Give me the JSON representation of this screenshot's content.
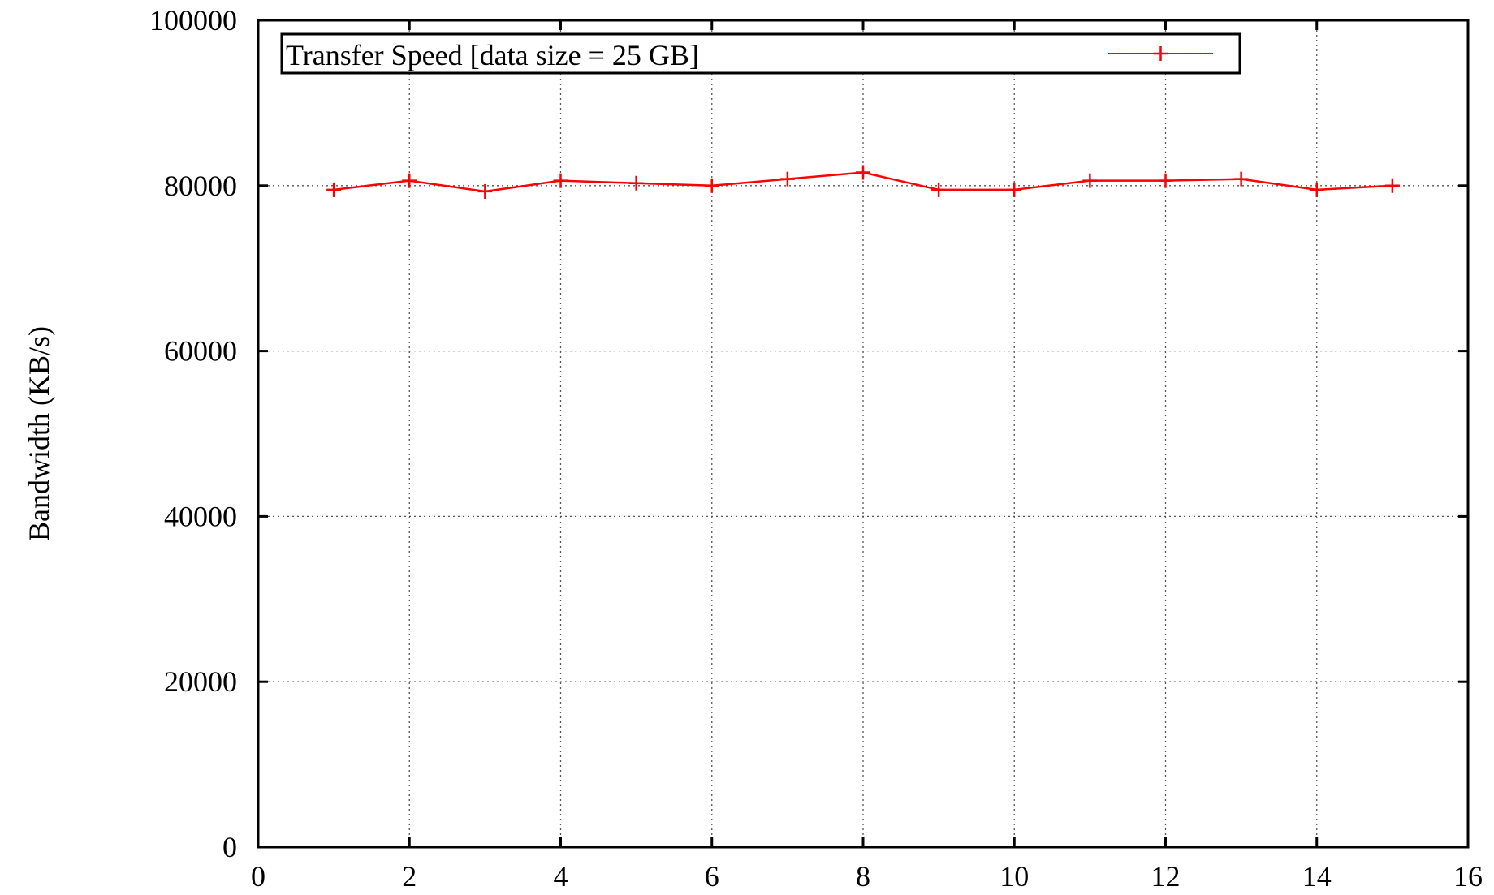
{
  "chart_data": {
    "type": "line",
    "title": "",
    "xlabel": "",
    "ylabel": "Bandwidth (KB/s)",
    "xlim": [
      0,
      16
    ],
    "ylim": [
      0,
      100000
    ],
    "x_ticks": [
      0,
      2,
      4,
      6,
      8,
      10,
      12,
      14,
      16
    ],
    "y_ticks": [
      0,
      20000,
      40000,
      60000,
      80000,
      100000
    ],
    "x_tick_labels": [
      "0",
      "2",
      "4",
      "6",
      "8",
      "10",
      "12",
      "14",
      "16"
    ],
    "y_tick_labels": [
      "0",
      "20000",
      "40000",
      "60000",
      "80000",
      "100000"
    ],
    "grid": true,
    "legend_position": "top",
    "series": [
      {
        "name": "Transfer Speed [data size = 25 GB]",
        "color": "#ff0000",
        "marker": "plus",
        "x": [
          1,
          2,
          3,
          4,
          5,
          6,
          7,
          8,
          9,
          10,
          11,
          12,
          13,
          14,
          15
        ],
        "y": [
          79500,
          80600,
          79300,
          80600,
          80300,
          80000,
          80800,
          81600,
          79500,
          79500,
          80600,
          80600,
          80800,
          79500,
          80000
        ]
      }
    ]
  }
}
